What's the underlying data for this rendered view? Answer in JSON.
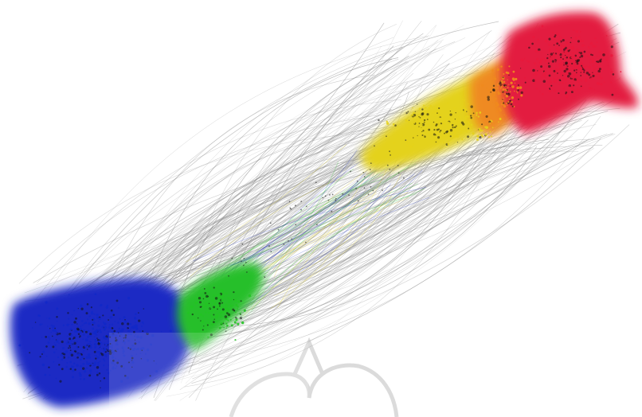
{
  "graph": {
    "clusters": [
      {
        "name": "blue-cluster",
        "color": "#1228c8"
      },
      {
        "name": "green-cluster",
        "color": "#22c422"
      },
      {
        "name": "yellow-cluster",
        "color": "#e6d21a"
      },
      {
        "name": "orange-cluster",
        "color": "#f08a1e"
      },
      {
        "name": "red-cluster",
        "color": "#e8193c"
      }
    ],
    "edge_color": "#8c8c8c",
    "watermark_color": "#9a9a9a"
  }
}
